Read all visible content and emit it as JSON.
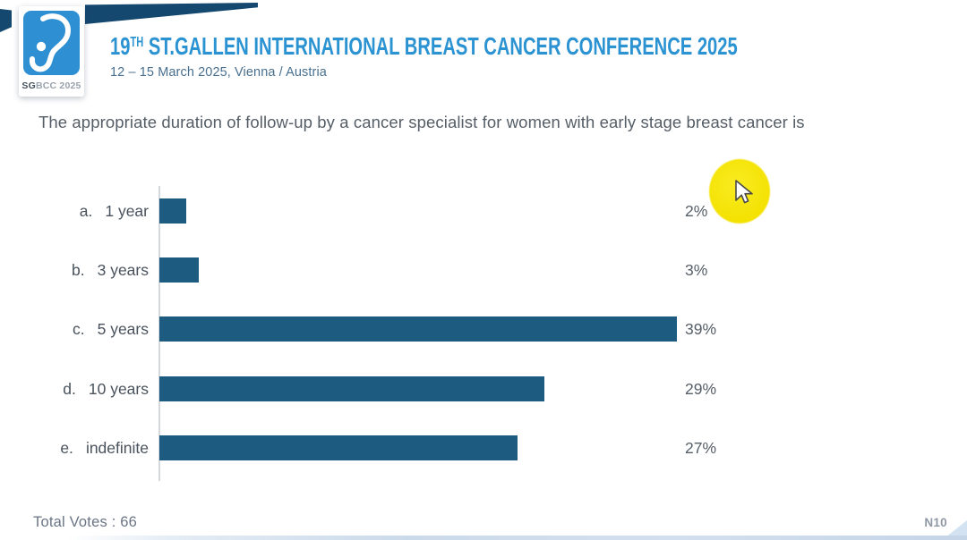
{
  "header": {
    "logo": {
      "icon": "sgbcc-ribbon-icon",
      "badge_bold": "SG",
      "badge_rest": "BCC 2025"
    },
    "title_num": "19",
    "title_sup": "TH",
    "title_main": " ST.GALLEN INTERNATIONAL BREAST CANCER CONFERENCE 2025",
    "subtitle": "12 – 15 March 2025, Vienna / Austria"
  },
  "question": "The appropriate duration of follow-up by a cancer specialist for women with early stage breast cancer is",
  "chart_data": {
    "type": "bar",
    "orientation": "horizontal",
    "title": "The appropriate duration of follow-up by a cancer specialist for women with early stage breast cancer is",
    "categories": [
      "a. 1 year",
      "b. 3 years",
      "c. 5 years",
      "d. 10 years",
      "e. indefinite"
    ],
    "values": [
      2,
      3,
      39,
      29,
      27
    ],
    "value_unit": "%",
    "xlim": [
      0,
      39
    ],
    "grid": false,
    "legend": false,
    "bar_color": "#1d5b80",
    "options": [
      {
        "letter": "a.",
        "label": "1 year",
        "value": 2,
        "percent_label": "2%"
      },
      {
        "letter": "b.",
        "label": "3 years",
        "value": 3,
        "percent_label": "3%"
      },
      {
        "letter": "c.",
        "label": "5 years",
        "value": 39,
        "percent_label": "39%"
      },
      {
        "letter": "d.",
        "label": "10 years",
        "value": 29,
        "percent_label": "29%"
      },
      {
        "letter": "e.",
        "label": "indefinite",
        "value": 27,
        "percent_label": "27%"
      }
    ]
  },
  "footer": {
    "total_votes_label": "Total Votes : 66",
    "slide_code": "N10"
  },
  "overlay": {
    "highlight": "yellow-spotlight",
    "highlight_color": "#f4e100",
    "cursor": "arrow-cursor"
  },
  "colors": {
    "brand_blue": "#2b93d2",
    "banner_navy": "#15486f",
    "logo_blue": "#2e8fd2",
    "bar_blue": "#1d5b80"
  }
}
